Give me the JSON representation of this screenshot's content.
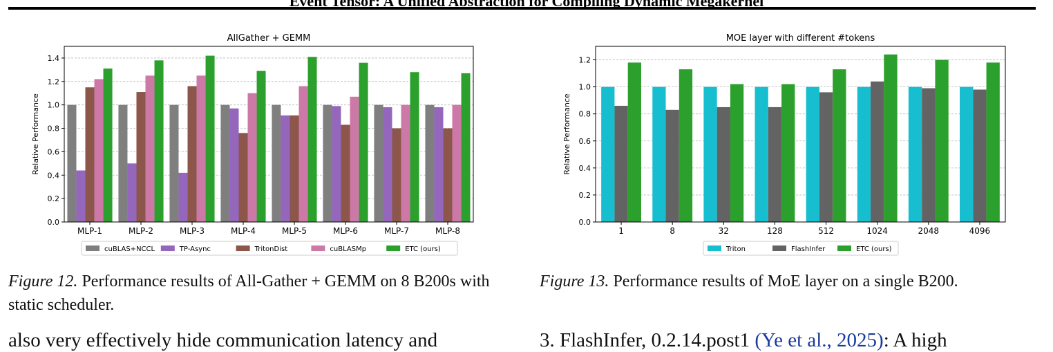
{
  "header": {
    "title": "Event Tensor: A Unified Abstraction for Compiling Dynamic Megakernel"
  },
  "chart_data": [
    {
      "type": "bar",
      "title": "AllGather + GEMM",
      "xlabel": "",
      "ylabel": "Relative Performance",
      "ylim": [
        0,
        1.5
      ],
      "yticks": [
        "0.0",
        "0.2",
        "0.4",
        "0.6",
        "0.8",
        "1.0",
        "1.2",
        "1.4"
      ],
      "grid": true,
      "legend": "bottom",
      "categories": [
        "MLP-1",
        "MLP-2",
        "MLP-3",
        "MLP-4",
        "MLP-5",
        "MLP-6",
        "MLP-7",
        "MLP-8"
      ],
      "series": [
        {
          "name": "cuBLAS+NCCL",
          "color": "#7f7f7f",
          "values": [
            1.0,
            1.0,
            1.0,
            1.0,
            1.0,
            1.0,
            1.0,
            1.0
          ]
        },
        {
          "name": "TP-Async",
          "color": "#9467bd",
          "values": [
            0.44,
            0.5,
            0.42,
            0.97,
            0.91,
            0.99,
            0.98,
            0.98
          ]
        },
        {
          "name": "TritonDist",
          "color": "#8c564b",
          "values": [
            1.15,
            1.11,
            1.16,
            0.76,
            0.91,
            0.83,
            0.8,
            0.8
          ]
        },
        {
          "name": "cuBLASMp",
          "color": "#cc79a7",
          "values": [
            1.22,
            1.25,
            1.25,
            1.1,
            1.16,
            1.07,
            1.0,
            1.0
          ]
        },
        {
          "name": "ETC (ours)",
          "color": "#2ca02c",
          "values": [
            1.31,
            1.38,
            1.42,
            1.29,
            1.41,
            1.36,
            1.28,
            1.27
          ]
        }
      ]
    },
    {
      "type": "bar",
      "title": "MOE layer with different #tokens",
      "xlabel": "",
      "ylabel": "Relative Performance",
      "ylim": [
        0,
        1.3
      ],
      "yticks": [
        "0.0",
        "0.2",
        "0.4",
        "0.6",
        "0.8",
        "1.0",
        "1.2"
      ],
      "grid": true,
      "legend": "bottom",
      "categories": [
        "1",
        "8",
        "32",
        "128",
        "512",
        "1024",
        "2048",
        "4096"
      ],
      "series": [
        {
          "name": "Triton",
          "color": "#17becf",
          "values": [
            1.0,
            1.0,
            1.0,
            1.0,
            1.0,
            1.0,
            1.0,
            1.0
          ]
        },
        {
          "name": "FlashInfer",
          "color": "#636363",
          "values": [
            0.86,
            0.83,
            0.85,
            0.85,
            0.96,
            1.04,
            0.99,
            0.98
          ]
        },
        {
          "name": "ETC (ours)",
          "color": "#2ca02c",
          "values": [
            1.18,
            1.13,
            1.02,
            1.02,
            1.13,
            1.24,
            1.2,
            1.18
          ]
        }
      ]
    }
  ],
  "captions": [
    {
      "label": "Figure 12.",
      "text": "Performance results of All-Gather + GEMM on 8 B200s with static scheduler."
    },
    {
      "label": "Figure 13.",
      "text": "Performance results of MoE layer on a single B200."
    }
  ],
  "body_left": {
    "text": "also very effectively hide communication latency and"
  },
  "body_right": {
    "prefix": "3. FlashInfer, 0.2.14.post1",
    "cite": "(Ye et al., 2025)",
    "suffix": ": A high"
  }
}
